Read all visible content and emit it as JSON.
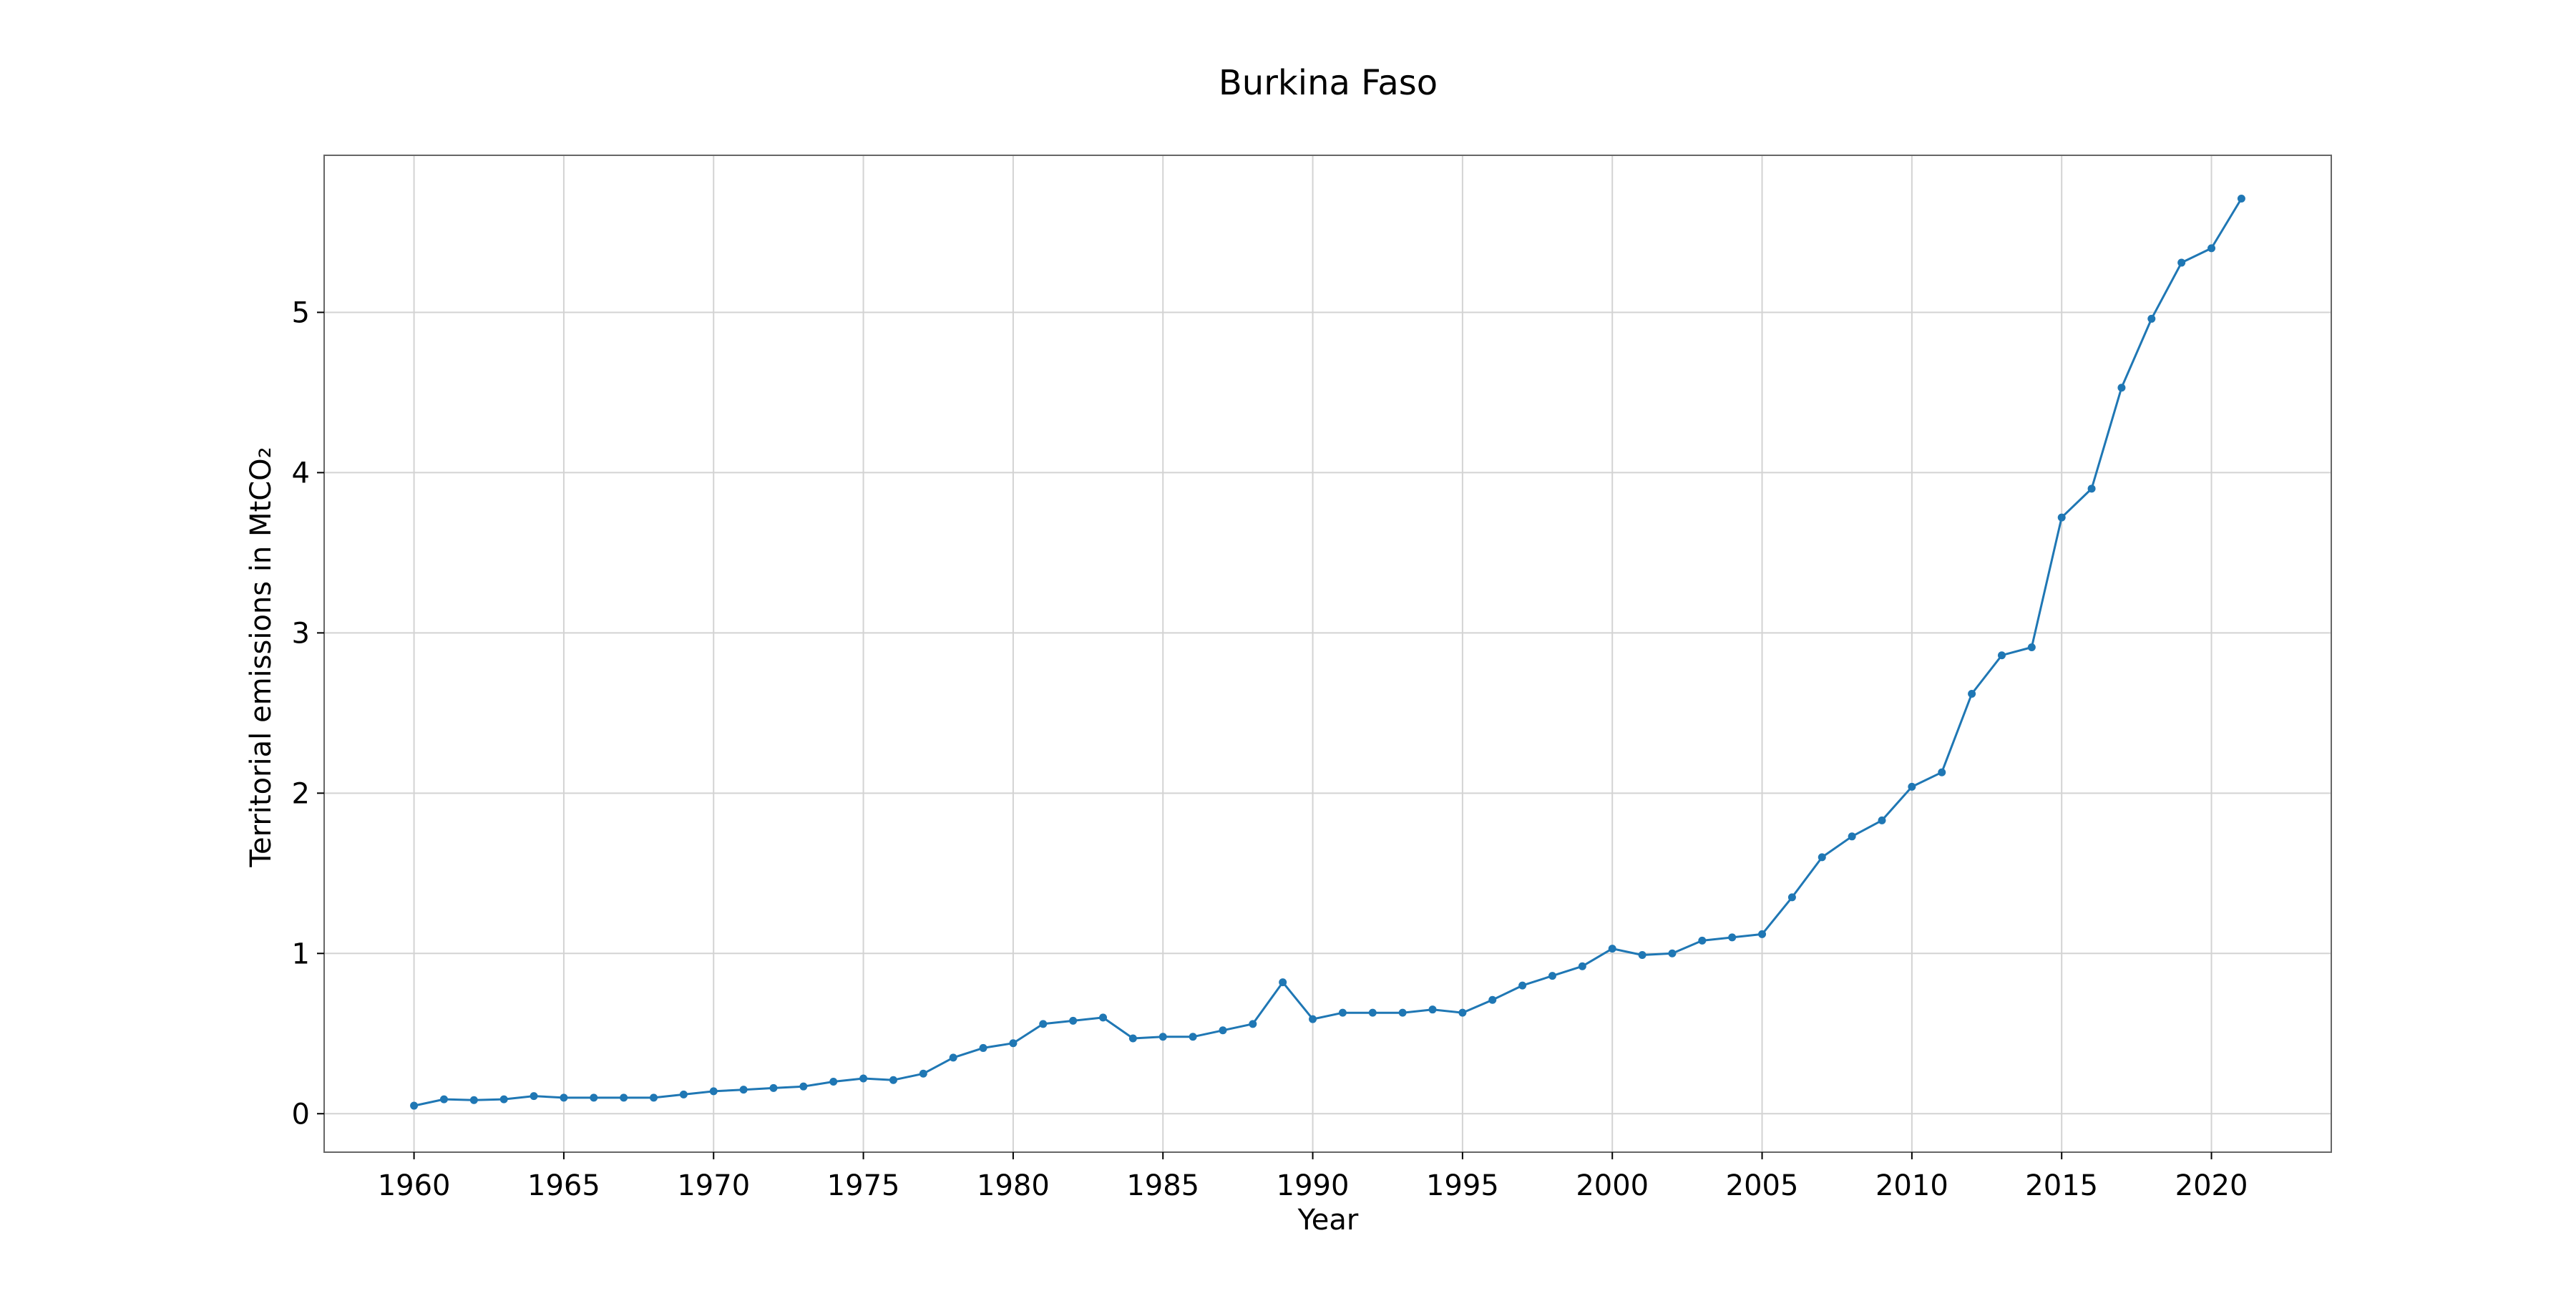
{
  "chart_data": {
    "type": "line",
    "title": "Burkina Faso",
    "xlabel": "Year",
    "ylabel": "Territorial emissions in MtCO₂",
    "xlim": [
      1957,
      2024
    ],
    "ylim": [
      -0.24,
      5.98
    ],
    "x_ticks": [
      1960,
      1965,
      1970,
      1975,
      1980,
      1985,
      1990,
      1995,
      2000,
      2005,
      2010,
      2015,
      2020
    ],
    "y_ticks": [
      0,
      1,
      2,
      3,
      4,
      5
    ],
    "grid": true,
    "line_color": "#1f77b4",
    "x": [
      1960,
      1961,
      1962,
      1963,
      1964,
      1965,
      1966,
      1967,
      1968,
      1969,
      1970,
      1971,
      1972,
      1973,
      1974,
      1975,
      1976,
      1977,
      1978,
      1979,
      1980,
      1981,
      1982,
      1983,
      1984,
      1985,
      1986,
      1987,
      1988,
      1989,
      1990,
      1991,
      1992,
      1993,
      1994,
      1995,
      1996,
      1997,
      1998,
      1999,
      2000,
      2001,
      2002,
      2003,
      2004,
      2005,
      2006,
      2007,
      2008,
      2009,
      2010,
      2011,
      2012,
      2013,
      2014,
      2015,
      2016,
      2017,
      2018,
      2019,
      2020,
      2021
    ],
    "series": [
      {
        "values": [
          0.05,
          0.09,
          0.085,
          0.09,
          0.11,
          0.1,
          0.1,
          0.1,
          0.1,
          0.12,
          0.14,
          0.15,
          0.16,
          0.17,
          0.2,
          0.22,
          0.21,
          0.25,
          0.35,
          0.41,
          0.44,
          0.56,
          0.58,
          0.6,
          0.47,
          0.48,
          0.48,
          0.52,
          0.56,
          0.82,
          0.59,
          0.63,
          0.63,
          0.63,
          0.65,
          0.63,
          0.71,
          0.8,
          0.86,
          0.92,
          1.03,
          0.99,
          1.0,
          1.08,
          1.1,
          1.12,
          1.35,
          1.6,
          1.73,
          1.83,
          2.04,
          2.13,
          2.62,
          2.86,
          2.91,
          3.72,
          3.9,
          4.53,
          4.96,
          5.31,
          5.4,
          5.71
        ]
      }
    ]
  }
}
